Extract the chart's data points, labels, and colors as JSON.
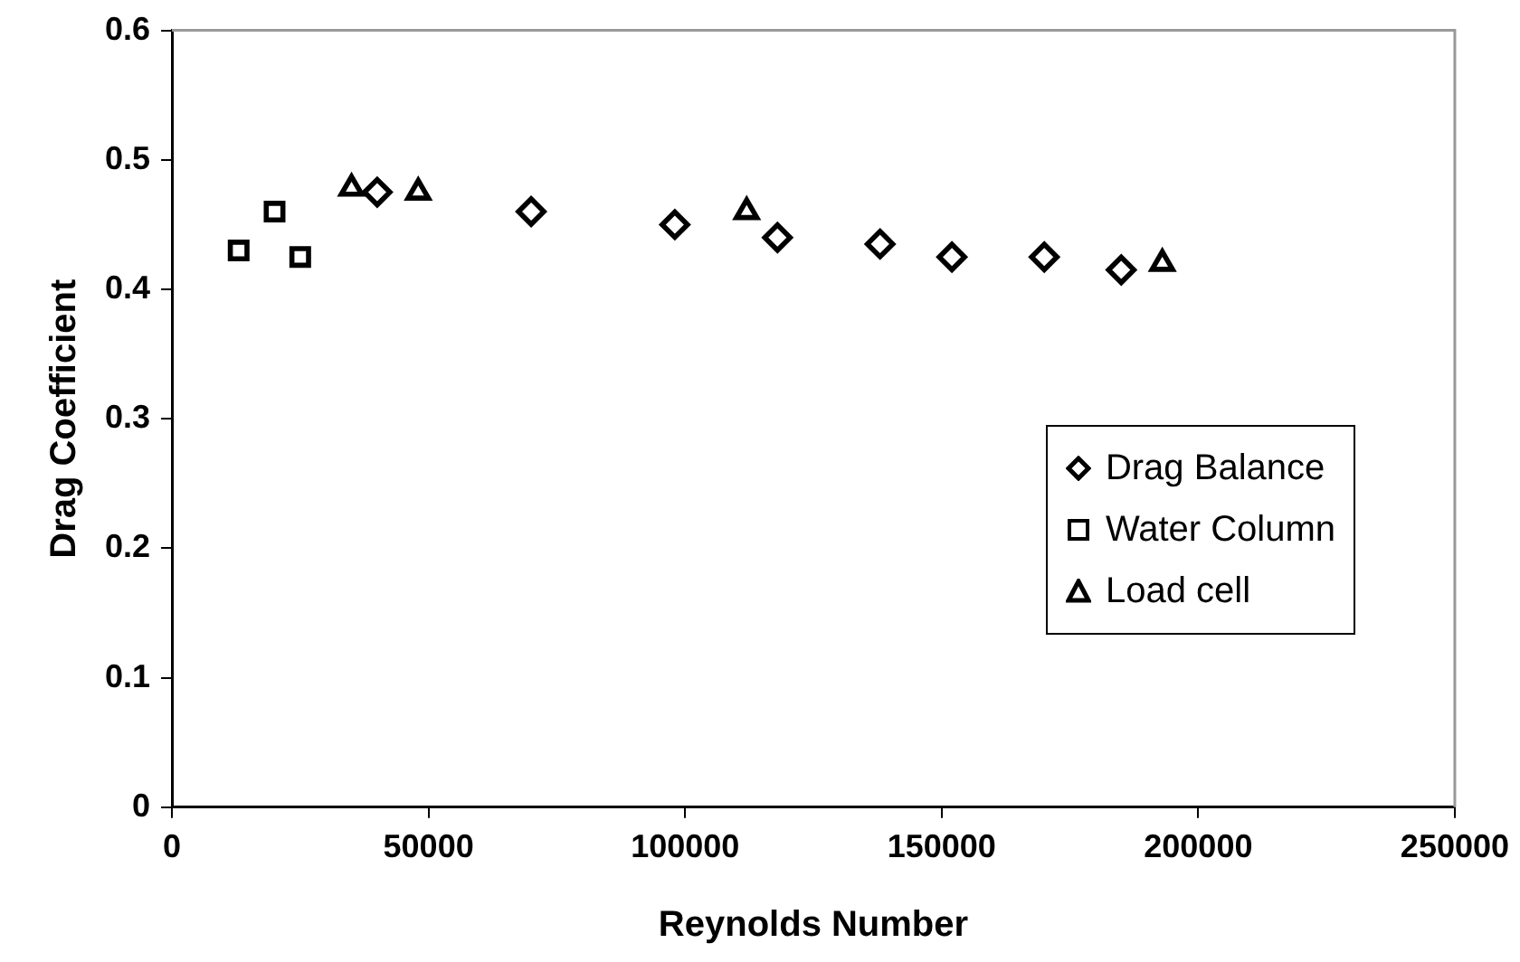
{
  "chart_data": {
    "type": "scatter",
    "xlabel": "Reynolds Number",
    "ylabel": "Drag Coefficient",
    "xlim": [
      0,
      250000
    ],
    "xticks": [
      0,
      50000,
      100000,
      150000,
      200000,
      250000
    ],
    "ylim": [
      0,
      0.6
    ],
    "yticks": [
      0,
      0.1,
      0.2,
      0.3,
      0.4,
      0.5,
      0.6
    ],
    "grid": false,
    "legend": "bottom right",
    "series": [
      {
        "name": "Drag Balance",
        "color": "#000000",
        "marker": "diamond",
        "x": [
          40000,
          70000,
          98000,
          118000,
          138000,
          152000,
          170000,
          185000
        ],
        "values": [
          0.475,
          0.46,
          0.45,
          0.44,
          0.435,
          0.425,
          0.425,
          0.415
        ]
      },
      {
        "name": "Water Column",
        "color": "#000000",
        "marker": "square",
        "x": [
          13000,
          20000,
          25000
        ],
        "values": [
          0.43,
          0.46,
          0.425
        ]
      },
      {
        "name": "Load cell",
        "color": "#000000",
        "marker": "triangle",
        "x": [
          35000,
          48000,
          112000,
          193000
        ],
        "values": [
          0.478,
          0.475,
          0.46,
          0.42
        ]
      }
    ]
  }
}
